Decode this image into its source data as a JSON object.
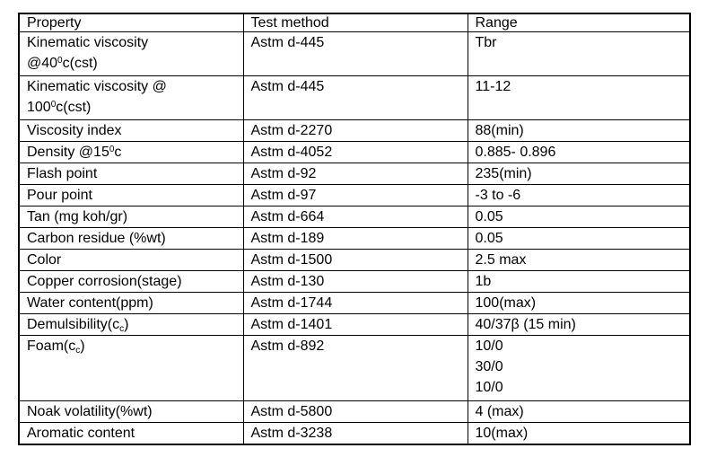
{
  "colors": {
    "border": "#000000",
    "text": "#000000",
    "background": "#ffffff"
  },
  "table": {
    "headers": [
      "Property",
      "Test method",
      "Range"
    ],
    "rows": [
      {
        "property": {
          "align": "center",
          "lines": [
            [
              {
                "t": "Kinematic viscosity"
              }
            ],
            [
              {
                "t": "@40"
              },
              {
                "t": "0",
                "s": "sup"
              },
              {
                "t": "c(cst)"
              }
            ]
          ]
        },
        "method": "Astm d-445",
        "range": [
          "Tbr"
        ]
      },
      {
        "property": {
          "align": "center",
          "lines": [
            [
              {
                "t": "Kinematic viscosity @"
              }
            ],
            [
              {
                "t": "100"
              },
              {
                "t": "0",
                "s": "sup"
              },
              {
                "t": "c(cst)"
              }
            ]
          ]
        },
        "method": "Astm d-445",
        "range": [
          "11-12"
        ]
      },
      {
        "property": {
          "align": "left",
          "lines": [
            [
              {
                "t": "Viscosity index"
              }
            ]
          ]
        },
        "method": "Astm d-2270",
        "range": [
          "88(min)"
        ]
      },
      {
        "property": {
          "align": "left",
          "lines": [
            [
              {
                "t": "Density @15"
              },
              {
                "t": "0",
                "s": "sup"
              },
              {
                "t": "c"
              }
            ]
          ]
        },
        "method": "Astm d-4052",
        "range": [
          "0.885- 0.896"
        ]
      },
      {
        "property": {
          "align": "left",
          "lines": [
            [
              {
                "t": "Flash point"
              }
            ]
          ]
        },
        "method": "Astm d-92",
        "range": [
          "235(min)"
        ]
      },
      {
        "property": {
          "align": "left",
          "lines": [
            [
              {
                "t": "Pour point"
              }
            ]
          ]
        },
        "method": "Astm d-97",
        "range": [
          "-3 to -6"
        ]
      },
      {
        "property": {
          "align": "left",
          "lines": [
            [
              {
                "t": "Tan (mg koh/gr)"
              }
            ]
          ]
        },
        "method": "Astm d-664",
        "range": [
          "0.05"
        ]
      },
      {
        "property": {
          "align": "left",
          "lines": [
            [
              {
                "t": "Carbon residue (%wt)"
              }
            ]
          ]
        },
        "method": "Astm d-189",
        "range": [
          "0.05"
        ]
      },
      {
        "property": {
          "align": "left",
          "lines": [
            [
              {
                "t": "Color"
              }
            ]
          ]
        },
        "method": "Astm d-1500",
        "range": [
          "2.5 max"
        ]
      },
      {
        "property": {
          "align": "left",
          "lines": [
            [
              {
                "t": "Copper corrosion(stage)"
              }
            ]
          ]
        },
        "method": "Astm d-130",
        "range": [
          "1b"
        ]
      },
      {
        "property": {
          "align": "left",
          "lines": [
            [
              {
                "t": "Water content(ppm)"
              }
            ]
          ]
        },
        "method": "Astm d-1744",
        "range": [
          "100(max)"
        ]
      },
      {
        "property": {
          "align": "left",
          "lines": [
            [
              {
                "t": "Demulsibility(c"
              },
              {
                "t": "c",
                "s": "sub"
              },
              {
                "t": ")"
              }
            ]
          ]
        },
        "method": "Astm d-1401",
        "range": [
          "40/37β (15 min)"
        ]
      },
      {
        "property": {
          "align": "left",
          "lines": [
            [
              {
                "t": "Foam(c"
              },
              {
                "t": "c",
                "s": "sub"
              },
              {
                "t": ")"
              }
            ]
          ]
        },
        "method": "Astm d-892",
        "range": [
          "10/0",
          "30/0",
          "10/0"
        ]
      },
      {
        "property": {
          "align": "left",
          "lines": [
            [
              {
                "t": "Noak volatility(%wt)"
              }
            ]
          ]
        },
        "method": "Astm d-5800",
        "range": [
          "4 (max)"
        ]
      },
      {
        "property": {
          "align": "left",
          "lines": [
            [
              {
                "t": "Aromatic content"
              }
            ]
          ]
        },
        "method": "Astm d-3238",
        "range": [
          "10(max)"
        ]
      }
    ]
  }
}
